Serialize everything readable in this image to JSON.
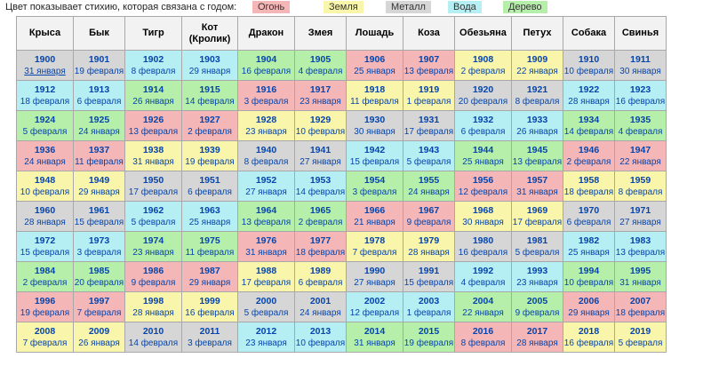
{
  "legend": {
    "intro": "Цвет показывает стихию, которая связана с годом:",
    "items": [
      {
        "label": "Огонь",
        "color": "#f4b6b6"
      },
      {
        "label": "Земля",
        "color": "#f9f5ab"
      },
      {
        "label": "Металл",
        "color": "#d6d6d6"
      },
      {
        "label": "Вода",
        "color": "#b5eef3"
      },
      {
        "label": "Дерево",
        "color": "#b6efa9"
      }
    ]
  },
  "headers": [
    "Крыса",
    "Бык",
    "Тигр",
    "Кот\n(Кролик)",
    "Дракон",
    "Змея",
    "Лошадь",
    "Коза",
    "Обезьяна",
    "Петух",
    "Собака",
    "Свинья"
  ],
  "rows": [
    [
      "1900",
      "31 января",
      "1901",
      "19 февраля",
      "1902",
      "8 февраля",
      "1903",
      "29 января",
      "1904",
      "16 февраля",
      "1905",
      "4 февраля",
      "1906",
      "25 января",
      "1907",
      "13 февраля",
      "1908",
      "2 февраля",
      "1909",
      "22 января",
      "1910",
      "10 февраля",
      "1911",
      "30 января"
    ],
    [
      "1912",
      "18 февраля",
      "1913",
      "6 февраля",
      "1914",
      "26 января",
      "1915",
      "14 февраля",
      "1916",
      "3 февраля",
      "1917",
      "23 января",
      "1918",
      "11 февраля",
      "1919",
      "1 февраля",
      "1920",
      "20 февраля",
      "1921",
      "8 февраля",
      "1922",
      "28 января",
      "1923",
      "16 февраля"
    ],
    [
      "1924",
      "5 февраля",
      "1925",
      "24 января",
      "1926",
      "13 февраля",
      "1927",
      "2 февраля",
      "1928",
      "23 января",
      "1929",
      "10 февраля",
      "1930",
      "30 января",
      "1931",
      "17 февраля",
      "1932",
      "6 февраля",
      "1933",
      "26 января",
      "1934",
      "14 февраля",
      "1935",
      "4 февраля"
    ],
    [
      "1936",
      "24 января",
      "1937",
      "11 февраля",
      "1938",
      "31 января",
      "1939",
      "19 февраля",
      "1940",
      "8 февраля",
      "1941",
      "27 января",
      "1942",
      "15 февраля",
      "1943",
      "5 февраля",
      "1944",
      "25 января",
      "1945",
      "13 февраля",
      "1946",
      "2 февраля",
      "1947",
      "22 января"
    ],
    [
      "1948",
      "10 февраля",
      "1949",
      "29 января",
      "1950",
      "17 февраля",
      "1951",
      "6 февраля",
      "1952",
      "27 января",
      "1953",
      "14 февраля",
      "1954",
      "3 февраля",
      "1955",
      "24 января",
      "1956",
      "12 февраля",
      "1957",
      "31 января",
      "1958",
      "18 февраля",
      "1959",
      "8 февраля"
    ],
    [
      "1960",
      "28 января",
      "1961",
      "15 февраля",
      "1962",
      "5 февраля",
      "1963",
      "25 января",
      "1964",
      "13 февраля",
      "1965",
      "2 февраля",
      "1966",
      "21 января",
      "1967",
      "9 февраля",
      "1968",
      "30 января",
      "1969",
      "17 февраля",
      "1970",
      "6 февраля",
      "1971",
      "27 января"
    ],
    [
      "1972",
      "15 февраля",
      "1973",
      "3 февраля",
      "1974",
      "23 января",
      "1975",
      "11 февраля",
      "1976",
      "31 января",
      "1977",
      "18 февраля",
      "1978",
      "7 февраля",
      "1979",
      "28 января",
      "1980",
      "16 февраля",
      "1981",
      "5 февраля",
      "1982",
      "25 января",
      "1983",
      "13 февраля"
    ],
    [
      "1984",
      "2 февраля",
      "1985",
      "20 февраля",
      "1986",
      "9 февраля",
      "1987",
      "29 января",
      "1988",
      "17 февраля",
      "1989",
      "6 февраля",
      "1990",
      "27 января",
      "1991",
      "15 февраля",
      "1992",
      "4 февраля",
      "1993",
      "23 января",
      "1994",
      "10 февраля",
      "1995",
      "31 января"
    ],
    [
      "1996",
      "19 февраля",
      "1997",
      "7 февраля",
      "1998",
      "28 января",
      "1999",
      "16 февраля",
      "2000",
      "5 февраля",
      "2001",
      "24 января",
      "2002",
      "12 февраля",
      "2003",
      "1 февраля",
      "2004",
      "22 января",
      "2005",
      "9 февраля",
      "2006",
      "29 января",
      "2007",
      "18 февраля"
    ],
    [
      "2008",
      "7 февраля",
      "2009",
      "26 января",
      "2010",
      "14 февраля",
      "2011",
      "3 февраля",
      "2012",
      "23 января",
      "2013",
      "10 февраля",
      "2014",
      "31 января",
      "2015",
      "19 февраля",
      "2016",
      "8 февраля",
      "2017",
      "28 января",
      "2018",
      "16 февраля",
      "2019",
      "5 февраля"
    ]
  ]
}
